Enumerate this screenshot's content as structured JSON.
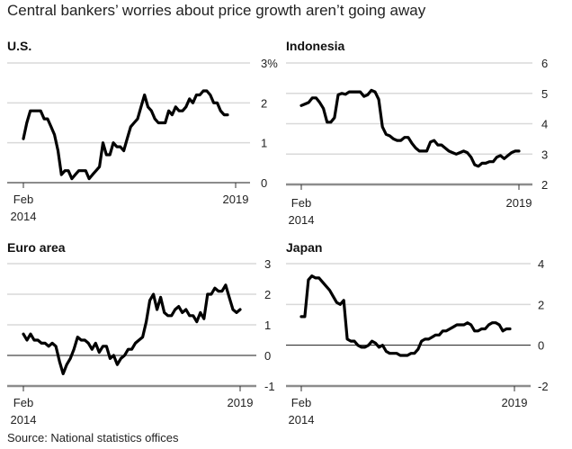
{
  "title": "Central bankers’ worries about price growth aren’t going away",
  "source": "Source: National statistics offices",
  "chart_data": [
    {
      "type": "line",
      "title": "U.S.",
      "xlabel": "",
      "ylabel": "",
      "x_ticks": [
        {
          "label": [
            "Feb",
            "2014"
          ],
          "month": 0
        },
        {
          "label": [
            "2019"
          ],
          "month": 59
        }
      ],
      "y_ticks": [
        {
          "value": 0,
          "label": "0"
        },
        {
          "value": 1,
          "label": "1"
        },
        {
          "value": 2,
          "label": "2"
        },
        {
          "value": 3,
          "label": "3%"
        }
      ],
      "ylim": [
        0,
        3
      ],
      "baseline_value": 0,
      "baseline_style": "dark",
      "zero_line": false,
      "x_range_months": [
        0,
        59
      ],
      "series": [
        {
          "name": "U.S.",
          "start": "Feb 2014",
          "values": [
            1.1,
            1.5,
            1.8,
            1.8,
            1.8,
            1.8,
            1.6,
            1.6,
            1.4,
            1.2,
            0.8,
            0.2,
            0.3,
            0.3,
            0.1,
            0.2,
            0.3,
            0.3,
            0.3,
            0.1,
            0.2,
            0.3,
            0.4,
            1.0,
            0.7,
            0.7,
            1.0,
            0.9,
            0.9,
            0.8,
            1.1,
            1.4,
            1.5,
            1.6,
            1.9,
            2.2,
            1.9,
            1.8,
            1.6,
            1.5,
            1.5,
            1.5,
            1.8,
            1.7,
            1.9,
            1.8,
            1.8,
            1.9,
            2.1,
            2.0,
            2.2,
            2.2,
            2.3,
            2.3,
            2.2,
            2.0,
            2.0,
            1.8,
            1.7,
            1.7
          ]
        }
      ]
    },
    {
      "type": "line",
      "title": "Indonesia",
      "xlabel": "",
      "ylabel": "",
      "x_ticks": [
        {
          "label": [
            "Feb",
            "2014"
          ],
          "month": 0
        },
        {
          "label": [
            "2019"
          ],
          "month": 59
        }
      ],
      "y_ticks": [
        {
          "value": 2,
          "label": "2"
        },
        {
          "value": 3,
          "label": "3"
        },
        {
          "value": 4,
          "label": "4"
        },
        {
          "value": 5,
          "label": "5"
        },
        {
          "value": 6,
          "label": "6"
        }
      ],
      "ylim": [
        2,
        6
      ],
      "baseline_value": 2,
      "baseline_style": "gray",
      "zero_line": false,
      "x_range_months": [
        0,
        59
      ],
      "series": [
        {
          "name": "Indonesia",
          "start": "Feb 2014",
          "values": [
            4.6,
            4.65,
            4.7,
            4.85,
            4.85,
            4.7,
            4.5,
            4.05,
            4.05,
            4.2,
            4.95,
            5.0,
            4.97,
            5.05,
            5.05,
            5.05,
            5.05,
            4.9,
            4.95,
            5.1,
            5.05,
            4.8,
            3.9,
            3.65,
            3.6,
            3.5,
            3.45,
            3.45,
            3.55,
            3.55,
            3.35,
            3.2,
            3.1,
            3.1,
            3.1,
            3.4,
            3.45,
            3.3,
            3.3,
            3.2,
            3.1,
            3.05,
            3.0,
            3.05,
            3.1,
            3.05,
            2.9,
            2.65,
            2.6,
            2.7,
            2.7,
            2.75,
            2.75,
            2.9,
            2.95,
            2.85,
            2.95,
            3.05,
            3.1,
            3.1
          ]
        }
      ]
    },
    {
      "type": "line",
      "title": "Euro area",
      "xlabel": "",
      "ylabel": "",
      "x_ticks": [
        {
          "label": [
            "Feb",
            "2014"
          ],
          "month": 0
        },
        {
          "label": [
            "2019"
          ],
          "month": 59
        }
      ],
      "y_ticks": [
        {
          "value": -1,
          "label": "-1"
        },
        {
          "value": 0,
          "label": "0"
        },
        {
          "value": 1,
          "label": "1"
        },
        {
          "value": 2,
          "label": "2"
        },
        {
          "value": 3,
          "label": "3"
        }
      ],
      "ylim": [
        -1,
        3
      ],
      "baseline_value": -1,
      "baseline_style": "gray",
      "zero_line": true,
      "x_range_months": [
        0,
        59
      ],
      "series": [
        {
          "name": "Euro area",
          "start": "Feb 2014",
          "values": [
            0.7,
            0.5,
            0.7,
            0.5,
            0.5,
            0.4,
            0.4,
            0.3,
            0.4,
            0.3,
            -0.2,
            -0.6,
            -0.3,
            -0.1,
            0.2,
            0.6,
            0.5,
            0.5,
            0.4,
            0.2,
            0.4,
            0.1,
            0.3,
            0.3,
            -0.1,
            0.0,
            -0.3,
            -0.1,
            0.0,
            0.2,
            0.2,
            0.4,
            0.5,
            0.6,
            1.1,
            1.8,
            2.0,
            1.5,
            1.9,
            1.4,
            1.3,
            1.3,
            1.5,
            1.6,
            1.4,
            1.5,
            1.3,
            1.3,
            1.1,
            1.4,
            1.2,
            2.0,
            2.0,
            2.2,
            2.1,
            2.1,
            2.3,
            1.9,
            1.5,
            1.4,
            1.5
          ]
        }
      ]
    },
    {
      "type": "line",
      "title": "Japan",
      "xlabel": "",
      "ylabel": "",
      "x_ticks": [
        {
          "label": [
            "Feb",
            "2014"
          ],
          "month": 0
        },
        {
          "label": [
            "2019"
          ],
          "month": 59
        }
      ],
      "y_ticks": [
        {
          "value": -2,
          "label": "-2"
        },
        {
          "value": 0,
          "label": "0"
        },
        {
          "value": 2,
          "label": "2"
        },
        {
          "value": 4,
          "label": "4"
        }
      ],
      "ylim": [
        -2,
        4
      ],
      "baseline_value": -2,
      "baseline_style": "gray",
      "zero_line": true,
      "x_range_months": [
        0,
        59
      ],
      "series": [
        {
          "name": "Japan",
          "start": "Feb 2014",
          "values": [
            1.4,
            1.4,
            3.2,
            3.4,
            3.3,
            3.3,
            3.1,
            2.9,
            2.7,
            2.4,
            2.1,
            2.0,
            2.2,
            0.3,
            0.2,
            0.2,
            0.0,
            -0.1,
            -0.1,
            0.0,
            0.2,
            0.1,
            -0.1,
            0.0,
            -0.3,
            -0.4,
            -0.4,
            -0.4,
            -0.5,
            -0.5,
            -0.5,
            -0.4,
            -0.4,
            -0.2,
            0.2,
            0.3,
            0.3,
            0.4,
            0.5,
            0.5,
            0.7,
            0.7,
            0.8,
            0.9,
            1.0,
            1.0,
            1.0,
            1.1,
            1.0,
            0.7,
            0.7,
            0.8,
            0.8,
            1.0,
            1.1,
            1.1,
            1.0,
            0.7,
            0.8,
            0.8
          ]
        }
      ]
    }
  ]
}
